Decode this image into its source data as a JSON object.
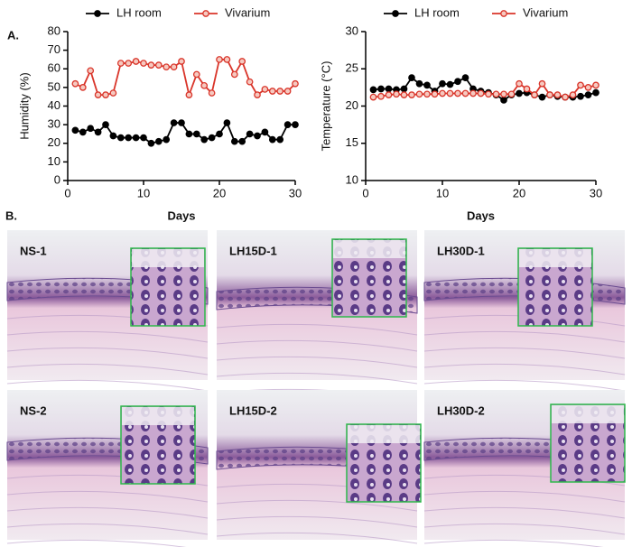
{
  "chart_data": [
    {
      "type": "line",
      "panel_label": "A.",
      "xlabel": "Days",
      "ylabel": "Humidity (%)",
      "x": [
        1,
        2,
        3,
        4,
        5,
        6,
        7,
        8,
        9,
        10,
        11,
        12,
        13,
        14,
        15,
        16,
        17,
        18,
        19,
        20,
        21,
        22,
        23,
        24,
        25,
        26,
        27,
        28,
        29,
        30
      ],
      "xlim": [
        0,
        30
      ],
      "xticks": [
        0,
        10,
        20,
        30
      ],
      "ylim": [
        0,
        80
      ],
      "yticks": [
        0,
        10,
        20,
        30,
        40,
        50,
        60,
        70,
        80
      ],
      "legend": "top",
      "series": [
        {
          "name": "LH room",
          "color": "#000000",
          "values": [
            27,
            26,
            28,
            26,
            30,
            24,
            23,
            23,
            23,
            23,
            20,
            21,
            22,
            31,
            31,
            25,
            25,
            22,
            23,
            25,
            31,
            21,
            21,
            25,
            24,
            26,
            22,
            22,
            30,
            30
          ]
        },
        {
          "name": "Vivarium",
          "color": "#d9352a",
          "values": [
            52,
            50,
            59,
            46,
            46,
            47,
            63,
            63,
            64,
            63,
            62,
            62,
            61,
            61,
            64,
            46,
            57,
            51,
            47,
            65,
            65,
            57,
            64,
            53,
            46,
            49,
            48,
            48,
            48,
            52
          ]
        }
      ]
    },
    {
      "type": "line",
      "xlabel": "Days",
      "ylabel": "Temperature (°C)",
      "x": [
        1,
        2,
        3,
        4,
        5,
        6,
        7,
        8,
        9,
        10,
        11,
        12,
        13,
        14,
        15,
        16,
        17,
        18,
        19,
        20,
        21,
        22,
        23,
        24,
        25,
        26,
        27,
        28,
        29,
        30
      ],
      "xlim": [
        0,
        30
      ],
      "xticks": [
        0,
        10,
        20,
        30
      ],
      "ylim": [
        10,
        30
      ],
      "yticks": [
        10,
        15,
        20,
        25,
        30
      ],
      "legend": "top",
      "series": [
        {
          "name": "LH room",
          "color": "#000000",
          "values": [
            22.2,
            22.3,
            22.3,
            22.2,
            22.3,
            23.8,
            23,
            22.8,
            22,
            23,
            22.9,
            23.3,
            23.8,
            22.3,
            22,
            21.8,
            21.5,
            20.8,
            21.5,
            21.7,
            21.8,
            21.5,
            21.2,
            21.5,
            21.3,
            21.2,
            21.2,
            21.3,
            21.5,
            21.8
          ]
        },
        {
          "name": "Vivarium",
          "color": "#d9352a",
          "values": [
            21.2,
            21.3,
            21.5,
            21.6,
            21.5,
            21.5,
            21.6,
            21.6,
            21.6,
            21.7,
            21.7,
            21.7,
            21.7,
            21.7,
            21.7,
            21.6,
            21.6,
            21.6,
            21.6,
            23,
            22.3,
            21.5,
            23,
            21.5,
            21.5,
            21.2,
            21.5,
            22.8,
            22.5,
            22.8
          ]
        }
      ]
    }
  ],
  "panel_b": {
    "label": "B.",
    "images": [
      "NS-1",
      "LH15D-1",
      "LH30D-1",
      "NS-2",
      "LH15D-2",
      "LH30D-2"
    ]
  }
}
